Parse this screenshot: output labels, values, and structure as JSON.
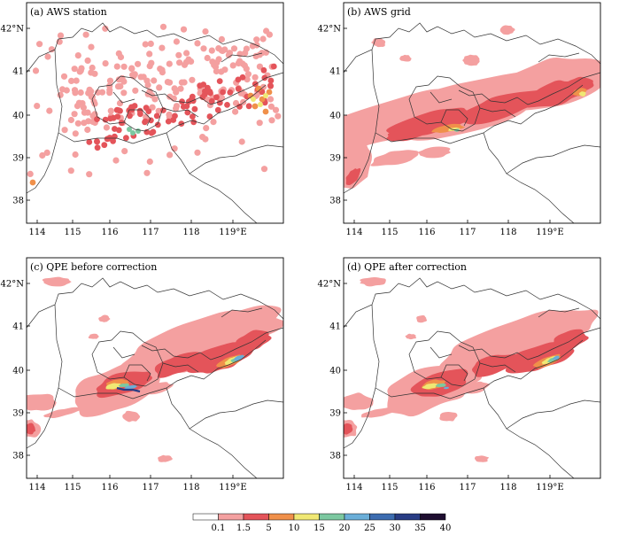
{
  "panels": [
    {
      "id": "a",
      "title": "(a) AWS station",
      "kind": "station"
    },
    {
      "id": "b",
      "title": "(b) AWS grid",
      "kind": "grid"
    },
    {
      "id": "c",
      "title": "(c) QPE before correction",
      "kind": "qpe-before"
    },
    {
      "id": "d",
      "title": "(d) QPE after correction",
      "kind": "qpe-after"
    }
  ],
  "axes": {
    "x_ticks": [
      "114",
      "115",
      "116",
      "117",
      "118",
      "119°E"
    ],
    "y_ticks": [
      "42°N",
      "41",
      "40",
      "39",
      "38"
    ]
  },
  "legend": {
    "levels": [
      "0.1",
      "1.5",
      "5",
      "10",
      "15",
      "20",
      "25",
      "30",
      "35",
      "40"
    ],
    "colors": [
      "#ffffff",
      "#f4a0a0",
      "#e4545a",
      "#f0904a",
      "#f0e874",
      "#7cc8a0",
      "#6aaed8",
      "#3c6cb0",
      "#283c84",
      "#1e0e30"
    ]
  },
  "colors": {
    "rain_light": "#f4a0a0",
    "rain_moderate": "#e4545a",
    "rain_heavy": "#f0904a",
    "rain_yellow": "#f0e874",
    "rain_green": "#7cc8a0",
    "rain_blue": "#6aaed8",
    "boundary": "#333333"
  }
}
